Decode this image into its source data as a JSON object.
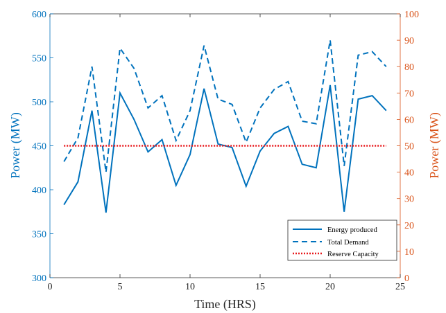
{
  "chart_data": {
    "type": "line",
    "xlabel": "Time (HRS)",
    "ylabel_left": "Power (MW)",
    "ylabel_right": "Power (MW)",
    "xlim": [
      0,
      25
    ],
    "ylim_left": [
      300,
      600
    ],
    "ylim_right": [
      0,
      100
    ],
    "xticks": [
      "0",
      "5",
      "10",
      "15",
      "20",
      "25"
    ],
    "yticks_left": [
      "300",
      "350",
      "400",
      "450",
      "500",
      "550",
      "600"
    ],
    "yticks_right": [
      "0",
      "10",
      "20",
      "30",
      "40",
      "50",
      "60",
      "70",
      "80",
      "90",
      "100"
    ],
    "grid": false,
    "legend_position": "bottom-right",
    "colors": {
      "left_axis": "#0072BD",
      "right_axis": "#D95319",
      "energy": "#0072BD",
      "demand": "#0072BD",
      "reserve": "#E8191C"
    },
    "series": [
      {
        "name": "Energy produced",
        "axis": "left",
        "style": "solid",
        "x": [
          1,
          2,
          3,
          4,
          5,
          6,
          7,
          8,
          9,
          10,
          11,
          12,
          13,
          14,
          15,
          16,
          17,
          18,
          19,
          20,
          21,
          22,
          23,
          24
        ],
        "values": [
          383,
          409,
          490,
          374,
          510,
          480,
          443,
          457,
          405,
          440,
          515,
          452,
          448,
          404,
          444,
          464,
          472,
          429,
          425,
          519,
          375,
          503,
          507,
          490
        ]
      },
      {
        "name": "Total Demand",
        "axis": "left",
        "style": "dashed",
        "x": [
          1,
          2,
          3,
          4,
          5,
          6,
          7,
          8,
          9,
          10,
          11,
          12,
          13,
          14,
          15,
          16,
          17,
          18,
          19,
          20,
          21,
          22,
          23,
          24
        ],
        "values": [
          432,
          459,
          540,
          420,
          561,
          538,
          493,
          507,
          456,
          490,
          564,
          503,
          497,
          454,
          493,
          514,
          523,
          478,
          475,
          570,
          427,
          553,
          557,
          540
        ]
      },
      {
        "name": "Reserve Capacity",
        "axis": "right",
        "style": "dotted",
        "x": [
          1,
          24
        ],
        "values": [
          50,
          50
        ]
      }
    ]
  }
}
